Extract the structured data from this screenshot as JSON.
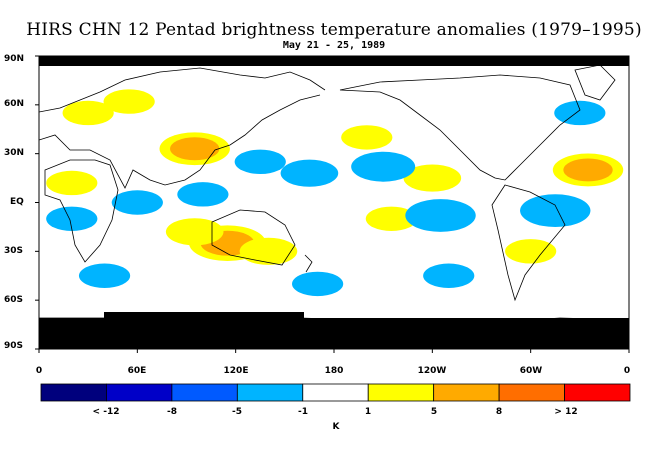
{
  "header": {
    "title": "HIRS CHN 12 Pentad brightness temperature anomalies (1979–1995)",
    "subtitle": "May 21 - 25, 1989"
  },
  "map": {
    "projection": "cylindrical-equidistant",
    "lon_range": [
      0,
      360
    ],
    "lat_range": [
      -90,
      90
    ],
    "lat_ticks": [
      "90N",
      "60N",
      "30N",
      "EQ",
      "30S",
      "60S",
      "90S"
    ],
    "lon_ticks": [
      "0",
      "60E",
      "120E",
      "180",
      "120W",
      "60W",
      "0"
    ],
    "missing_color": "#000000",
    "coastline_color": "#000000"
  },
  "colorbar": {
    "colors": [
      "#00007d",
      "#0000c8",
      "#005aff",
      "#00b4ff",
      "#ffffff",
      "#ffff00",
      "#ffaa00",
      "#ff6e00",
      "#ff0000"
    ],
    "labels": [
      "< -12",
      "-8",
      "-5",
      "-1",
      "1",
      "5",
      "8",
      "> 12"
    ],
    "unit": "K"
  },
  "chart_data": {
    "type": "heatmap",
    "title": "HIRS CHN 12 Pentad brightness temperature anomalies (1979–1995)",
    "subtitle": "May 21 - 25, 1989",
    "xlabel": "",
    "ylabel": "",
    "xlim": [
      0,
      360
    ],
    "ylim": [
      -90,
      90
    ],
    "unit": "K",
    "levels": [
      -12,
      -8,
      -5,
      -1,
      1,
      5,
      8,
      12
    ],
    "anomaly_regions": [
      {
        "lon": 95,
        "lat": 33,
        "value": 6
      },
      {
        "lon": 30,
        "lat": 55,
        "value": 3
      },
      {
        "lon": 55,
        "lat": 62,
        "value": 3
      },
      {
        "lon": 20,
        "lat": 12,
        "value": 3
      },
      {
        "lon": 115,
        "lat": -25,
        "value": 7
      },
      {
        "lon": 95,
        "lat": -18,
        "value": 4
      },
      {
        "lon": 140,
        "lat": -30,
        "value": 4
      },
      {
        "lon": 335,
        "lat": 20,
        "value": 6
      },
      {
        "lon": 240,
        "lat": 15,
        "value": 4
      },
      {
        "lon": 215,
        "lat": -10,
        "value": 3
      },
      {
        "lon": 300,
        "lat": -30,
        "value": 3
      },
      {
        "lon": 200,
        "lat": 40,
        "value": 3
      },
      {
        "lon": 165,
        "lat": 18,
        "value": -4
      },
      {
        "lon": 210,
        "lat": 22,
        "value": -5
      },
      {
        "lon": 135,
        "lat": 25,
        "value": -3
      },
      {
        "lon": 315,
        "lat": -5,
        "value": -6
      },
      {
        "lon": 245,
        "lat": -8,
        "value": -6
      },
      {
        "lon": 20,
        "lat": -10,
        "value": -3
      },
      {
        "lon": 60,
        "lat": 0,
        "value": -3
      },
      {
        "lon": 100,
        "lat": 5,
        "value": -3
      },
      {
        "lon": 170,
        "lat": -50,
        "value": -3
      },
      {
        "lon": 250,
        "lat": -45,
        "value": -3
      },
      {
        "lon": 40,
        "lat": -45,
        "value": -3
      },
      {
        "lon": 330,
        "lat": 55,
        "value": -3
      }
    ]
  }
}
